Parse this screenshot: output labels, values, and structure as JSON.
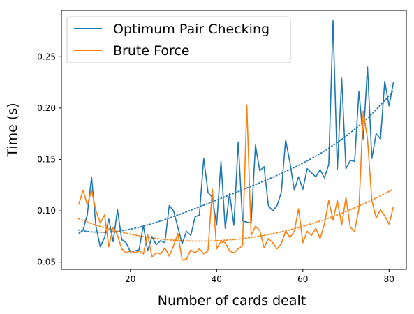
{
  "chart_data": {
    "type": "line",
    "title": "",
    "xlabel": "Number of cards dealt",
    "ylabel": "Time (s)",
    "xlim": [
      4,
      84
    ],
    "ylim": [
      0.043,
      0.295
    ],
    "xticks": [
      20,
      40,
      60,
      80
    ],
    "yticks": [
      0.05,
      0.1,
      0.15,
      0.2,
      0.25
    ],
    "xtick_labels": [
      "20",
      "40",
      "60",
      "80"
    ],
    "ytick_labels": [
      "0.05",
      "0.10",
      "0.15",
      "0.20",
      "0.25"
    ],
    "grid": false,
    "legend_position": "top-left",
    "x": [
      8,
      9,
      10,
      11,
      12,
      13,
      14,
      15,
      16,
      17,
      18,
      19,
      20,
      21,
      22,
      23,
      24,
      25,
      26,
      27,
      28,
      29,
      30,
      31,
      32,
      33,
      34,
      35,
      36,
      37,
      38,
      39,
      40,
      41,
      42,
      43,
      44,
      45,
      46,
      47,
      48,
      49,
      50,
      51,
      52,
      53,
      54,
      55,
      56,
      57,
      58,
      59,
      60,
      61,
      62,
      63,
      64,
      65,
      66,
      67,
      68,
      69,
      70,
      71,
      72,
      73,
      74,
      75,
      76,
      77,
      78,
      79,
      80,
      81
    ],
    "series": [
      {
        "name": "Optimum Pair Checking",
        "color": "#1f77b4",
        "values": [
          0.078,
          0.081,
          0.096,
          0.133,
          0.085,
          0.065,
          0.074,
          0.092,
          0.07,
          0.101,
          0.072,
          0.069,
          0.06,
          0.061,
          0.062,
          0.086,
          0.061,
          0.075,
          0.067,
          0.071,
          0.069,
          0.105,
          0.1,
          0.084,
          0.068,
          0.08,
          0.076,
          0.094,
          0.096,
          0.151,
          0.118,
          0.113,
          0.086,
          0.148,
          0.083,
          0.117,
          0.086,
          0.167,
          0.09,
          0.089,
          0.088,
          0.164,
          0.139,
          0.143,
          0.105,
          0.1,
          0.105,
          0.118,
          0.169,
          0.147,
          0.12,
          0.133,
          0.121,
          0.141,
          0.137,
          0.133,
          0.14,
          0.132,
          0.145,
          0.285,
          0.14,
          0.229,
          0.141,
          0.149,
          0.148,
          0.216,
          0.17,
          0.24,
          0.151,
          0.175,
          0.17,
          0.226,
          0.202,
          0.225
        ],
        "trend": [
          0.0813,
          0.0805,
          0.0799,
          0.0794,
          0.0792,
          0.0791,
          0.0791,
          0.0792,
          0.0795,
          0.08,
          0.0806,
          0.0813,
          0.0821,
          0.083,
          0.084,
          0.085,
          0.0862,
          0.0874,
          0.0887,
          0.0901,
          0.0915,
          0.0929,
          0.0944,
          0.0959,
          0.0974,
          0.099,
          0.1006,
          0.1022,
          0.1039,
          0.1055,
          0.1071,
          0.1088,
          0.1104,
          0.1121,
          0.1138,
          0.1154,
          0.1171,
          0.1187,
          0.1204,
          0.1221,
          0.1238,
          0.1255,
          0.1273,
          0.129,
          0.1308,
          0.1326,
          0.1344,
          0.1363,
          0.1382,
          0.1402,
          0.1422,
          0.1443,
          0.1464,
          0.1486,
          0.1509,
          0.1533,
          0.1557,
          0.1583,
          0.1609,
          0.1637,
          0.1665,
          0.1695,
          0.1726,
          0.1759,
          0.1792,
          0.1828,
          0.1865,
          0.1903,
          0.1943,
          0.1985,
          0.2029,
          0.2074,
          0.2122,
          0.2172
        ]
      },
      {
        "name": "Brute Force",
        "color": "#ff7f0e",
        "values": [
          0.106,
          0.12,
          0.106,
          0.12,
          0.1,
          0.088,
          0.096,
          0.065,
          0.084,
          0.076,
          0.063,
          0.059,
          0.061,
          0.059,
          0.061,
          0.058,
          0.077,
          0.055,
          0.059,
          0.058,
          0.064,
          0.056,
          0.066,
          0.078,
          0.052,
          0.053,
          0.062,
          0.059,
          0.063,
          0.058,
          0.061,
          0.121,
          0.063,
          0.07,
          0.069,
          0.061,
          0.059,
          0.063,
          0.066,
          0.203,
          0.076,
          0.085,
          0.081,
          0.064,
          0.073,
          0.069,
          0.063,
          0.068,
          0.08,
          0.074,
          0.08,
          0.102,
          0.069,
          0.08,
          0.076,
          0.083,
          0.073,
          0.087,
          0.11,
          0.091,
          0.11,
          0.086,
          0.113,
          0.084,
          0.08,
          0.102,
          0.197,
          0.17,
          0.11,
          0.093,
          0.101,
          0.095,
          0.087,
          0.104
        ],
        "trend": [
          0.0923,
          0.0906,
          0.089,
          0.0875,
          0.0861,
          0.0848,
          0.0835,
          0.0823,
          0.0812,
          0.0801,
          0.079,
          0.0781,
          0.0772,
          0.0764,
          0.0756,
          0.0749,
          0.0742,
          0.0736,
          0.0731,
          0.0726,
          0.0721,
          0.0717,
          0.0714,
          0.0711,
          0.0709,
          0.0707,
          0.0706,
          0.0705,
          0.0705,
          0.0705,
          0.0706,
          0.0707,
          0.0709,
          0.0711,
          0.0714,
          0.0717,
          0.0721,
          0.0725,
          0.073,
          0.0735,
          0.0741,
          0.0747,
          0.0754,
          0.0761,
          0.0769,
          0.0777,
          0.0786,
          0.0795,
          0.0805,
          0.0815,
          0.0826,
          0.0837,
          0.0849,
          0.0861,
          0.0874,
          0.0887,
          0.0901,
          0.0915,
          0.093,
          0.0945,
          0.0961,
          0.0977,
          0.0994,
          0.1011,
          0.1029,
          0.1047,
          0.1066,
          0.1085,
          0.1105,
          0.1125,
          0.1146,
          0.1167,
          0.1189,
          0.1211
        ]
      }
    ]
  }
}
